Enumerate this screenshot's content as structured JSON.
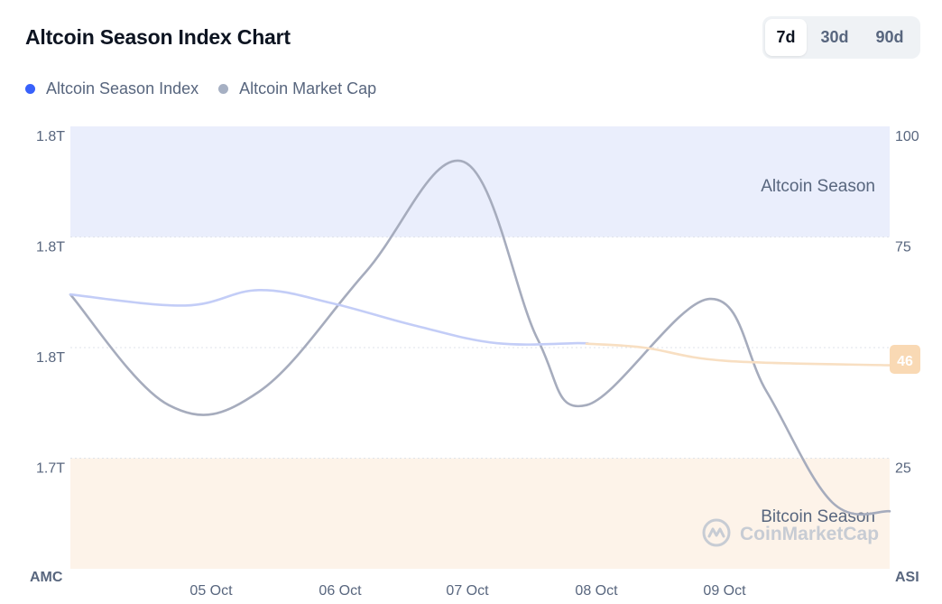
{
  "header": {
    "title": "Altcoin Season Index Chart",
    "range_tabs": [
      {
        "label": "7d",
        "active": true
      },
      {
        "label": "30d",
        "active": false
      },
      {
        "label": "90d",
        "active": false
      }
    ]
  },
  "legend": [
    {
      "label": "Altcoin Season Index",
      "color": "#3861fb"
    },
    {
      "label": "Altcoin Market Cap",
      "color": "#a6b0c3"
    }
  ],
  "watermark": {
    "text": "CoinMarketCap",
    "icon": "coinmarketcap-logo-icon"
  },
  "chart_data": {
    "type": "line",
    "title": "Altcoin Season Index Chart",
    "x_ticks": [
      "05 Oct",
      "06 Oct",
      "07 Oct",
      "08 Oct",
      "09 Oct"
    ],
    "left_axis": {
      "label": "AMC",
      "ticks": [
        "1.8T",
        "1.8T",
        "1.8T",
        "1.7T"
      ],
      "ylim": [
        0,
        100
      ]
    },
    "right_axis": {
      "label": "ASI",
      "ticks": [
        100,
        75,
        25
      ],
      "ylim": [
        0,
        100
      ]
    },
    "zones": [
      {
        "label": "Altcoin Season",
        "from": 75,
        "to": 100,
        "color": "#eaeefc"
      },
      {
        "label": "Bitcoin Season",
        "from": 0,
        "to": 25,
        "color": "#fdf3e9"
      }
    ],
    "current_value": {
      "value": 46,
      "color": "#f9d9b4"
    },
    "series": [
      {
        "name": "Altcoin Season Index",
        "color": "#c3cdf7",
        "projection_color": "#f8dfc2",
        "projection_from": 63,
        "points": [
          {
            "x": 0,
            "y": 62
          },
          {
            "x": 14,
            "y": 59.5
          },
          {
            "x": 23,
            "y": 63
          },
          {
            "x": 32,
            "y": 60
          },
          {
            "x": 42,
            "y": 55
          },
          {
            "x": 52,
            "y": 51
          },
          {
            "x": 62,
            "y": 51
          },
          {
            "x": 70,
            "y": 50
          },
          {
            "x": 80,
            "y": 47
          },
          {
            "x": 100,
            "y": 46
          }
        ]
      },
      {
        "name": "Altcoin Market Cap",
        "color": "#a6acbd",
        "points": [
          {
            "x": 0,
            "y": 62
          },
          {
            "x": 12,
            "y": 37
          },
          {
            "x": 23,
            "y": 40
          },
          {
            "x": 36,
            "y": 67
          },
          {
            "x": 48,
            "y": 92
          },
          {
            "x": 57,
            "y": 52
          },
          {
            "x": 63,
            "y": 37
          },
          {
            "x": 78,
            "y": 61
          },
          {
            "x": 85,
            "y": 40
          },
          {
            "x": 93,
            "y": 15
          },
          {
            "x": 100,
            "y": 13
          }
        ]
      }
    ]
  }
}
